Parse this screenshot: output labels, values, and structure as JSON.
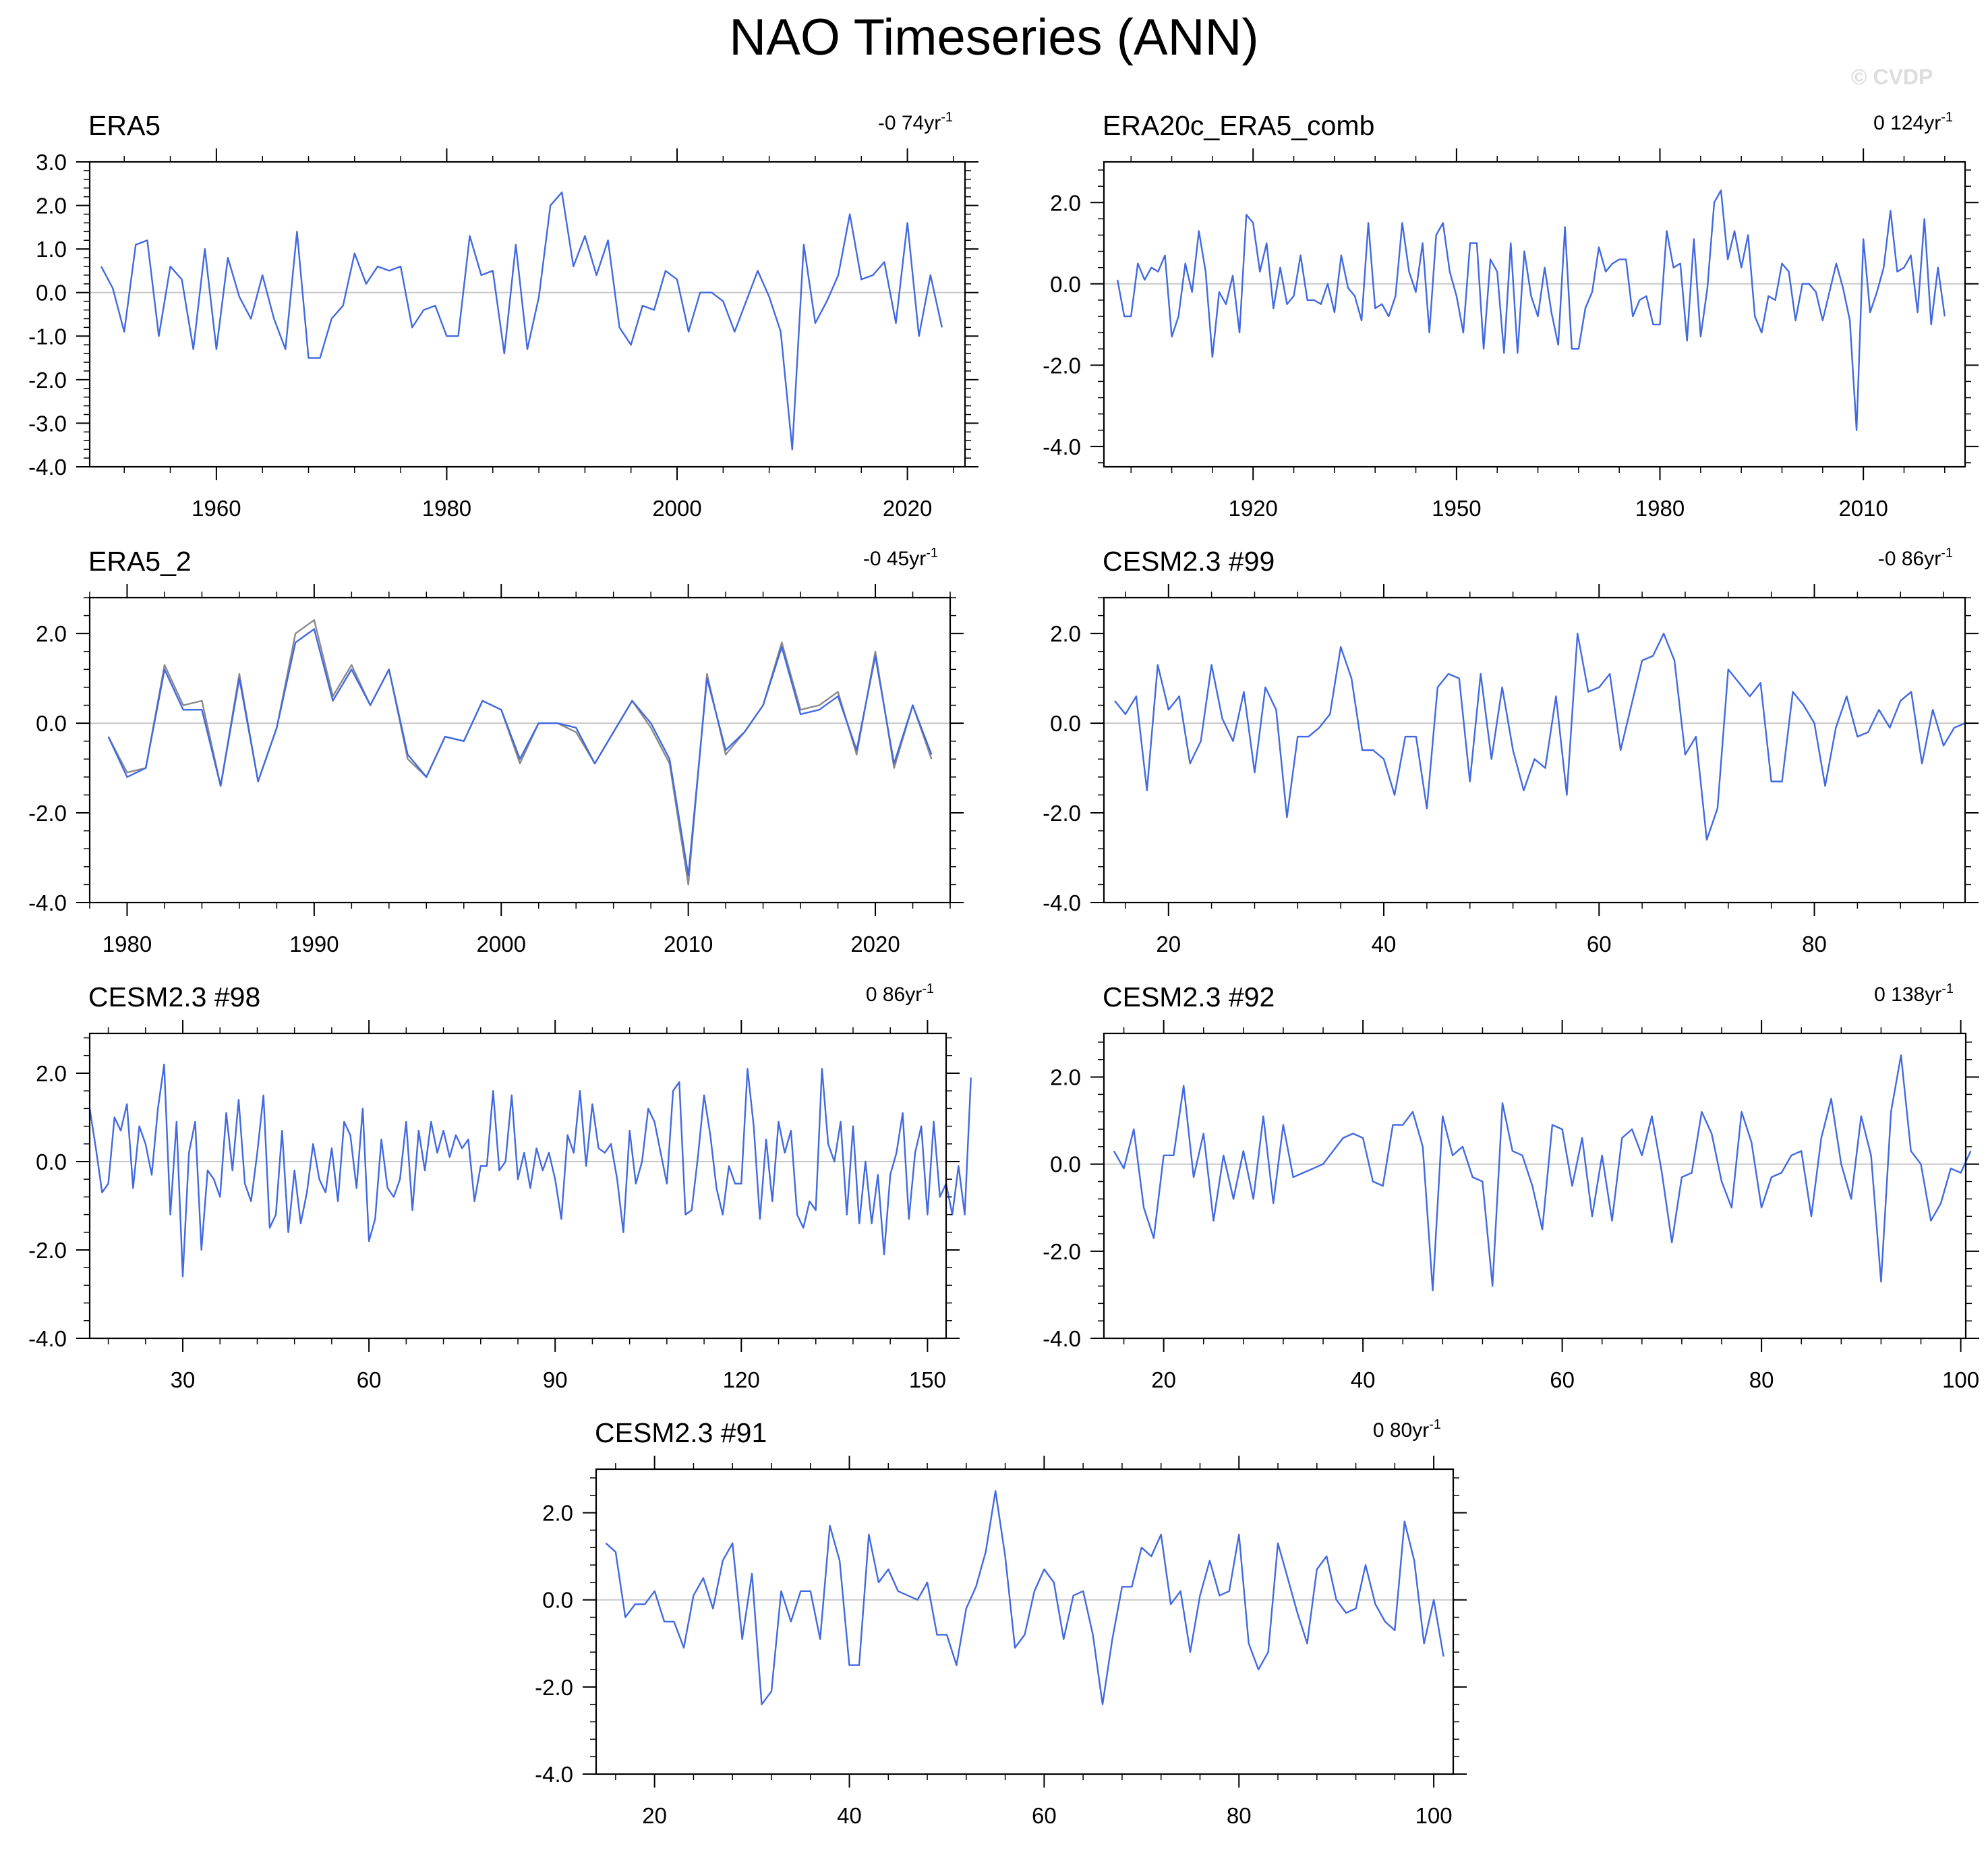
{
  "title": "NAO Timeseries (ANN)",
  "watermark": "© CVDP",
  "colors": {
    "line": "#4169e1",
    "line2": "#8a8a8a",
    "zero": "#c8c8c8",
    "axis": "#000000"
  },
  "chart_data": [
    {
      "type": "line",
      "title": "ERA5",
      "trend_label": "-0 74yr",
      "xlim": [
        1949,
        2025
      ],
      "ylim": [
        -4,
        3
      ],
      "xticks": [
        1960,
        1980,
        2000,
        2020
      ],
      "yticks": [
        3,
        2,
        1,
        0,
        -1,
        -2,
        -3,
        -4
      ],
      "ytick_labels": [
        "3.0",
        "2.0",
        "1.0",
        "0.0",
        "-1.0",
        "-2.0",
        "-3.0",
        "-4.0"
      ],
      "x_start": 1950,
      "series": [
        {
          "name": "ERA5",
          "values": [
            0.6,
            0.1,
            -0.9,
            1.1,
            1.2,
            -1.0,
            0.6,
            0.3,
            -1.3,
            1.0,
            -1.3,
            0.8,
            -0.1,
            -0.6,
            0.4,
            -0.6,
            -1.3,
            1.4,
            -1.5,
            -1.5,
            -0.6,
            -0.3,
            0.9,
            0.2,
            0.6,
            0.5,
            0.6,
            -0.8,
            -0.4,
            -0.3,
            -1.0,
            -1.0,
            1.3,
            0.4,
            0.5,
            -1.4,
            1.1,
            -1.3,
            -0.1,
            2.0,
            2.3,
            0.6,
            1.3,
            0.4,
            1.2,
            -0.8,
            -1.2,
            -0.3,
            -0.4,
            0.5,
            0.3,
            -0.9,
            0.0,
            0.0,
            -0.2,
            -0.9,
            -0.2,
            0.5,
            -0.1,
            -0.9,
            -3.6,
            1.1,
            -0.7,
            -0.2,
            0.4,
            1.8,
            0.3,
            0.4,
            0.7,
            -0.7,
            1.6,
            -1.0,
            0.4,
            -0.8
          ]
        }
      ]
    },
    {
      "type": "line",
      "title": "ERA20c_ERA5_comb",
      "trend_label": "0 124yr",
      "xlim": [
        1898,
        2025
      ],
      "ylim": [
        -4.5,
        3
      ],
      "xticks": [
        1920,
        1950,
        1980,
        2010
      ],
      "yticks": [
        2,
        0,
        -2,
        -4
      ],
      "ytick_labels": [
        "2.0",
        "0.0",
        "-2.0",
        "-4.0"
      ],
      "x_start": 1900,
      "series": [
        {
          "name": "ERA20c_ERA5_comb",
          "values": [
            0.1,
            -0.8,
            -0.8,
            0.5,
            0.1,
            0.4,
            0.3,
            0.7,
            -1.3,
            -0.8,
            0.5,
            -0.2,
            1.3,
            0.3,
            -1.8,
            -0.2,
            -0.5,
            0.2,
            -1.2,
            1.7,
            1.5,
            0.3,
            1.0,
            -0.6,
            0.4,
            -0.5,
            -0.3,
            0.7,
            -0.4,
            -0.4,
            -0.5,
            0.0,
            -0.7,
            0.7,
            -0.1,
            -0.3,
            -0.9,
            1.5,
            -0.6,
            -0.5,
            -0.8,
            -0.3,
            1.5,
            0.3,
            -0.2,
            1.0,
            -1.2,
            1.2,
            1.5,
            0.3,
            -0.3,
            -1.2,
            1.0,
            1.0,
            -1.6,
            0.6,
            0.3,
            -1.7,
            1.0,
            -1.7,
            0.8,
            -0.3,
            -0.8,
            0.4,
            -0.7,
            -1.5,
            1.4,
            -1.6,
            -1.6,
            -0.6,
            -0.2,
            0.9,
            0.3,
            0.5,
            0.6,
            0.6,
            -0.8,
            -0.4,
            -0.3,
            -1.0,
            -1.0,
            1.3,
            0.4,
            0.5,
            -1.4,
            1.1,
            -1.3,
            -0.1,
            2.0,
            2.3,
            0.6,
            1.3,
            0.4,
            1.2,
            -0.8,
            -1.2,
            -0.3,
            -0.4,
            0.5,
            0.3,
            -0.9,
            0.0,
            0.0,
            -0.2,
            -0.9,
            -0.2,
            0.5,
            -0.1,
            -0.9,
            -3.6,
            1.1,
            -0.7,
            -0.2,
            0.4,
            1.8,
            0.3,
            0.4,
            0.7,
            -0.7,
            1.6,
            -1.0,
            0.4,
            -0.8
          ]
        }
      ]
    },
    {
      "type": "line",
      "title": "ERA5_2",
      "trend_label": "-0 45yr",
      "xlim": [
        1978,
        2024
      ],
      "ylim": [
        -4,
        2.8
      ],
      "xticks": [
        1980,
        1990,
        2000,
        2010,
        2020
      ],
      "yticks": [
        2,
        0,
        -2,
        -4
      ],
      "ytick_labels": [
        "2.0",
        "0.0",
        "-2.0",
        "-4.0"
      ],
      "x_start": 1979,
      "series": [
        {
          "name": "ERA5_2",
          "values": [
            -0.3,
            -1.1,
            -1.0,
            1.3,
            0.4,
            0.5,
            -1.4,
            1.1,
            -1.3,
            -0.1,
            2.0,
            2.3,
            0.6,
            1.3,
            0.4,
            1.2,
            -0.8,
            -1.2,
            -0.3,
            -0.4,
            0.5,
            0.3,
            -0.9,
            0.0,
            0.0,
            -0.2,
            -0.9,
            -0.2,
            0.5,
            -0.1,
            -0.9,
            -3.6,
            1.1,
            -0.7,
            -0.2,
            0.4,
            1.8,
            0.3,
            0.4,
            0.7,
            -0.7,
            1.6,
            -1.0,
            0.4,
            -0.8
          ]
        },
        {
          "name": "ERA5",
          "values": [
            -0.3,
            -1.2,
            -1.0,
            1.2,
            0.3,
            0.3,
            -1.4,
            1.0,
            -1.3,
            -0.1,
            1.8,
            2.1,
            0.5,
            1.2,
            0.4,
            1.2,
            -0.7,
            -1.2,
            -0.3,
            -0.4,
            0.5,
            0.3,
            -0.8,
            0.0,
            0.0,
            -0.1,
            -0.9,
            -0.2,
            0.5,
            0.0,
            -0.8,
            -3.4,
            1.0,
            -0.6,
            -0.2,
            0.4,
            1.7,
            0.2,
            0.3,
            0.6,
            -0.6,
            1.5,
            -0.9,
            0.4,
            -0.7
          ]
        }
      ]
    },
    {
      "type": "line",
      "title": "CESM2.3 #99",
      "trend_label": "-0 86yr",
      "xlim": [
        14,
        94
      ],
      "ylim": [
        -4,
        2.8
      ],
      "xticks": [
        20,
        40,
        60,
        80
      ],
      "yticks": [
        2,
        0,
        -2,
        -4
      ],
      "ytick_labels": [
        "2.0",
        "0.0",
        "-2.0",
        "-4.0"
      ],
      "x_start": 15,
      "series": [
        {
          "name": "CESM2.3 #99",
          "values": [
            0.5,
            0.2,
            0.6,
            -1.5,
            1.3,
            0.3,
            0.6,
            -0.9,
            -0.4,
            1.3,
            0.1,
            -0.4,
            0.7,
            -1.1,
            0.8,
            0.3,
            -2.1,
            -0.3,
            -0.3,
            -0.1,
            0.2,
            1.7,
            1.0,
            -0.6,
            -0.6,
            -0.8,
            -1.6,
            -0.3,
            -0.3,
            -1.9,
            0.8,
            1.1,
            1.0,
            -1.3,
            1.1,
            -0.8,
            0.8,
            -0.6,
            -1.5,
            -0.8,
            -1.0,
            0.6,
            -1.6,
            2.0,
            0.7,
            0.8,
            1.1,
            -0.6,
            0.4,
            1.4,
            1.5,
            2.0,
            1.4,
            -0.7,
            -0.3,
            -2.6,
            -1.9,
            1.2,
            0.9,
            0.6,
            0.9,
            -1.3,
            -1.3,
            0.7,
            0.4,
            0.0,
            -1.4,
            -0.1,
            0.6,
            -0.3,
            -0.2,
            0.3,
            -0.1,
            0.5,
            0.7,
            -0.9,
            0.3,
            -0.5,
            -0.1,
            0.0
          ]
        }
      ]
    },
    {
      "type": "line",
      "title": "CESM2.3 #98",
      "trend_label": "0 86yr",
      "xlim": [
        15,
        153
      ],
      "ylim": [
        -4,
        2.9
      ],
      "xticks": [
        30,
        60,
        90,
        120,
        150
      ],
      "yticks": [
        2,
        0,
        -2,
        -4
      ],
      "ytick_labels": [
        "2.0",
        "0.0",
        "-2.0",
        "-4.0"
      ],
      "x_start": 15,
      "series": [
        {
          "name": "CESM2.3 #98",
          "values": [
            1.2,
            0.3,
            -0.7,
            -0.5,
            1.0,
            0.7,
            1.3,
            -0.6,
            0.8,
            0.4,
            -0.3,
            1.2,
            2.2,
            -1.2,
            0.9,
            -2.6,
            0.2,
            0.9,
            -2.0,
            -0.2,
            -0.4,
            -0.8,
            1.1,
            -0.2,
            1.4,
            -0.5,
            -0.9,
            0.2,
            1.5,
            -1.5,
            -1.2,
            0.7,
            -1.6,
            -0.2,
            -1.4,
            -0.7,
            0.4,
            -0.4,
            -0.7,
            0.3,
            -0.9,
            0.9,
            0.6,
            -0.6,
            1.2,
            -1.8,
            -1.3,
            0.5,
            -0.6,
            -0.8,
            -0.4,
            0.9,
            -1.1,
            0.7,
            -0.2,
            0.9,
            0.2,
            0.7,
            0.1,
            0.6,
            0.3,
            0.5,
            -0.9,
            -0.1,
            -0.1,
            1.6,
            -0.2,
            0.0,
            1.5,
            -0.4,
            0.2,
            -0.6,
            0.3,
            -0.2,
            0.2,
            -0.4,
            -1.3,
            0.6,
            0.2,
            1.6,
            -0.1,
            1.3,
            0.3,
            0.2,
            0.4,
            -0.4,
            -1.6,
            0.7,
            -0.5,
            0.0,
            1.2,
            0.9,
            0.2,
            -0.5,
            1.6,
            1.8,
            -1.2,
            -1.1,
            0.1,
            1.5,
            0.6,
            -0.6,
            -1.2,
            -0.1,
            -0.5,
            -0.5,
            2.1,
            0.8,
            -1.3,
            0.5,
            -0.9,
            0.9,
            0.2,
            0.7,
            -1.2,
            -1.5,
            -0.9,
            -1.1,
            2.1,
            0.4,
            0.0,
            0.9,
            -1.2,
            0.8,
            -1.4,
            0.0,
            -1.4,
            -0.3,
            -2.1,
            -0.3,
            0.2,
            1.1,
            -1.3,
            0.2,
            0.8,
            -1.2,
            0.9,
            -0.8,
            -0.5,
            -1.2,
            -0.1,
            -1.2,
            1.9
          ]
        }
      ]
    },
    {
      "type": "line",
      "title": "CESM2.3 #92",
      "trend_label": "0 138yr",
      "xlim": [
        14,
        100.5
      ],
      "ylim": [
        -4,
        3
      ],
      "xticks": [
        20,
        40,
        60,
        80,
        100
      ],
      "yticks": [
        2,
        0,
        -2,
        -4
      ],
      "ytick_labels": [
        "2.0",
        "0.0",
        "-2.0",
        "-4.0"
      ],
      "x_start": 15,
      "series": [
        {
          "name": "CESM2.3 #92",
          "values": [
            0.3,
            -0.1,
            0.8,
            -1.0,
            -1.7,
            0.2,
            0.2,
            1.8,
            -0.3,
            0.7,
            -1.3,
            0.2,
            -0.8,
            0.3,
            -0.8,
            1.1,
            -0.9,
            0.9,
            -0.3,
            -0.2,
            -0.1,
            0.0,
            0.3,
            0.6,
            0.7,
            0.6,
            -0.4,
            -0.5,
            0.9,
            0.9,
            1.2,
            0.4,
            -2.9,
            1.1,
            0.2,
            0.4,
            -0.3,
            -0.4,
            -2.8,
            1.4,
            0.3,
            0.2,
            -0.5,
            -1.5,
            0.9,
            0.8,
            -0.5,
            0.6,
            -1.2,
            0.2,
            -1.3,
            0.6,
            0.8,
            0.2,
            1.1,
            -0.2,
            -1.8,
            -0.3,
            -0.2,
            1.2,
            0.7,
            -0.4,
            -1.0,
            1.2,
            0.5,
            -1.0,
            -0.3,
            -0.2,
            0.2,
            0.3,
            -1.2,
            0.6,
            1.5,
            0.0,
            -0.8,
            1.1,
            0.2,
            -2.7,
            1.2,
            2.5,
            0.3,
            0.0,
            -1.3,
            -0.9,
            -0.1,
            -0.2,
            0.3
          ]
        }
      ]
    },
    {
      "type": "line",
      "title": "CESM2.3 #91",
      "trend_label": "0 80yr",
      "xlim": [
        14,
        102
      ],
      "ylim": [
        -4,
        3
      ],
      "xticks": [
        20,
        40,
        60,
        80,
        100
      ],
      "yticks": [
        2,
        0,
        -2,
        -4
      ],
      "ytick_labels": [
        "2.0",
        "0.0",
        "-2.0",
        "-4.0"
      ],
      "x_start": 15,
      "series": [
        {
          "name": "CESM2.3 #91",
          "values": [
            1.3,
            1.1,
            -0.4,
            -0.1,
            -0.1,
            0.2,
            -0.5,
            -0.5,
            -1.1,
            0.1,
            0.5,
            -0.2,
            0.9,
            1.3,
            -0.9,
            0.6,
            -2.4,
            -2.1,
            0.2,
            -0.5,
            0.2,
            0.2,
            -0.9,
            1.7,
            0.9,
            -1.5,
            -1.5,
            1.5,
            0.4,
            0.7,
            0.2,
            0.1,
            0.0,
            0.4,
            -0.8,
            -0.8,
            -1.5,
            -0.2,
            0.3,
            1.1,
            2.5,
            1.0,
            -1.1,
            -0.8,
            0.2,
            0.7,
            0.4,
            -0.9,
            0.1,
            0.2,
            -0.8,
            -2.4,
            -0.9,
            0.3,
            0.3,
            1.2,
            1.0,
            1.5,
            -0.1,
            0.2,
            -1.2,
            0.1,
            0.9,
            0.1,
            0.2,
            1.5,
            -1.0,
            -1.6,
            -1.2,
            1.3,
            0.5,
            -0.3,
            -1.0,
            0.7,
            1.0,
            0.0,
            -0.3,
            -0.2,
            0.8,
            -0.1,
            -0.5,
            -0.7,
            1.8,
            0.9,
            -1.0,
            0.0,
            -1.3
          ]
        }
      ]
    }
  ]
}
